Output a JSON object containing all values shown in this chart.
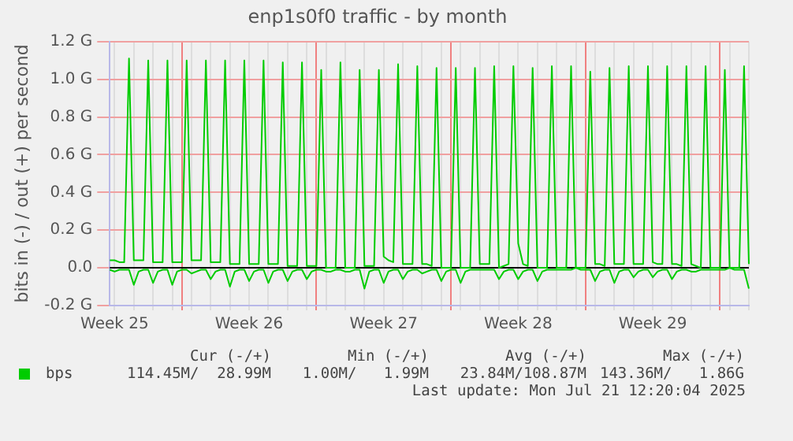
{
  "chart_data": {
    "type": "line",
    "title": "enp1s0f0 traffic - by month",
    "ylabel": "bits in (-) / out (+) per second",
    "categories": [
      null,
      "Week 25",
      null,
      null,
      null,
      null,
      null,
      null,
      null,
      null,
      null,
      null,
      null,
      null,
      null,
      null,
      null,
      null,
      null,
      null,
      null,
      null,
      null,
      null,
      null,
      null,
      null,
      null,
      null,
      "Week 26",
      null,
      null,
      null,
      null,
      null,
      null,
      null,
      null,
      null,
      null,
      null,
      null,
      null,
      null,
      null,
      null,
      null,
      null,
      null,
      null,
      null,
      null,
      null,
      null,
      null,
      null,
      null,
      "Week 27",
      null,
      null,
      null,
      null,
      null,
      null,
      null,
      null,
      null,
      null,
      null,
      null,
      null,
      null,
      null,
      null,
      null,
      null,
      null,
      null,
      null,
      null,
      null,
      null,
      null,
      null,
      null,
      "Week 28",
      null,
      null,
      null,
      null,
      null,
      null,
      null,
      null,
      null,
      null,
      null,
      null,
      null,
      null,
      null,
      null,
      null,
      null,
      null,
      null,
      null,
      null,
      null,
      null,
      null,
      null,
      null,
      "Week 29",
      null,
      null,
      null,
      null,
      null,
      null,
      null,
      null,
      null,
      null,
      null,
      null,
      null,
      null,
      null,
      null,
      null,
      null,
      null,
      null
    ],
    "ylim": [
      -0.2,
      1.2
    ],
    "yticks": [
      {
        "value": -0.2,
        "label": "-0.2 G"
      },
      {
        "value": 0,
        "label": "0.0"
      },
      {
        "value": 0.2,
        "label": "0.2 G"
      },
      {
        "value": 0.4,
        "label": "0.4 G"
      },
      {
        "value": 0.6,
        "label": "0.6 G"
      },
      {
        "value": 0.8,
        "label": "0.8 G"
      },
      {
        "value": 1.0,
        "label": "1.0 G"
      },
      {
        "value": 1.2,
        "label": "1.2 G"
      }
    ],
    "grid": true,
    "legend": "bottom",
    "marker": "none",
    "line_style": "solid",
    "ref_lines": [
      {
        "axis": "y",
        "value": 0,
        "color": "#000000"
      }
    ],
    "series": [
      {
        "name": "bps",
        "color": "#00cc00",
        "values": [
          0.04,
          0.04,
          0.03,
          0.03,
          1.11,
          0.04,
          0.04,
          0.04,
          1.1,
          0.03,
          0.03,
          0.03,
          1.1,
          0.03,
          0.03,
          0.03,
          1.1,
          0.04,
          0.04,
          0.04,
          1.1,
          0.03,
          0.03,
          0.03,
          1.1,
          0.02,
          0.02,
          0.02,
          1.1,
          0.02,
          0.02,
          0.02,
          1.1,
          0.02,
          0.02,
          0.02,
          1.09,
          0.01,
          0.01,
          0.01,
          1.09,
          0.01,
          0.01,
          0.01,
          1.05,
          0.0,
          0.0,
          0.0,
          1.09,
          0.0,
          0.0,
          0.0,
          1.05,
          0.01,
          0.01,
          0.01,
          1.05,
          0.06,
          0.04,
          0.03,
          1.08,
          0.02,
          0.02,
          0.02,
          1.07,
          0.02,
          0.02,
          0.01,
          1.06,
          0.0,
          0.0,
          0.0,
          1.06,
          0.0,
          0.0,
          0.0,
          1.06,
          0.02,
          0.02,
          0.02,
          1.07,
          0.0,
          0.01,
          0.02,
          1.07,
          0.13,
          0.02,
          0.01,
          1.06,
          0.0,
          0.0,
          0.0,
          1.07,
          0.0,
          0.0,
          0.0,
          1.07,
          0.0,
          0.0,
          0.0,
          1.04,
          0.02,
          0.02,
          0.01,
          1.06,
          0.02,
          0.02,
          0.02,
          1.07,
          0.02,
          0.02,
          0.02,
          1.07,
          0.03,
          0.02,
          0.02,
          1.07,
          0.02,
          0.02,
          0.01,
          1.07,
          0.02,
          0.01,
          0.0,
          1.07,
          0.0,
          0.0,
          0.0,
          1.05,
          0.0,
          0.0,
          0.0,
          1.07,
          0.02
        ]
      },
      {
        "color": "#00cc00",
        "values": [
          -0.01,
          -0.02,
          -0.01,
          -0.01,
          -0.01,
          -0.09,
          -0.02,
          -0.01,
          -0.01,
          -0.08,
          -0.02,
          -0.01,
          -0.01,
          -0.09,
          -0.02,
          -0.01,
          -0.01,
          -0.03,
          -0.02,
          -0.01,
          -0.01,
          -0.06,
          -0.02,
          -0.01,
          -0.01,
          -0.1,
          -0.02,
          -0.01,
          -0.01,
          -0.07,
          -0.02,
          -0.01,
          -0.01,
          -0.08,
          -0.02,
          -0.01,
          -0.01,
          -0.07,
          -0.02,
          -0.01,
          -0.01,
          -0.06,
          -0.02,
          -0.01,
          -0.01,
          -0.02,
          -0.02,
          -0.01,
          -0.01,
          -0.02,
          -0.02,
          -0.01,
          -0.01,
          -0.11,
          -0.02,
          -0.01,
          -0.01,
          -0.08,
          -0.02,
          -0.01,
          -0.01,
          -0.06,
          -0.02,
          -0.01,
          -0.01,
          -0.03,
          -0.02,
          -0.01,
          -0.01,
          -0.07,
          -0.02,
          -0.01,
          -0.01,
          -0.08,
          -0.02,
          -0.01,
          -0.01,
          -0.01,
          -0.01,
          -0.01,
          -0.01,
          -0.06,
          -0.02,
          -0.01,
          -0.01,
          -0.06,
          -0.02,
          -0.01,
          -0.01,
          -0.07,
          -0.02,
          -0.01,
          -0.01,
          -0.01,
          -0.01,
          -0.01,
          -0.01,
          0.0,
          -0.01,
          -0.01,
          -0.01,
          -0.07,
          -0.02,
          -0.01,
          -0.01,
          -0.08,
          -0.02,
          -0.01,
          -0.01,
          -0.05,
          -0.02,
          -0.01,
          -0.01,
          -0.05,
          -0.02,
          -0.01,
          -0.01,
          -0.06,
          -0.02,
          -0.01,
          -0.01,
          -0.02,
          -0.02,
          -0.01,
          -0.01,
          -0.01,
          -0.01,
          -0.01,
          -0.01,
          0.0,
          -0.01,
          -0.01,
          -0.01,
          -0.11
        ]
      }
    ],
    "annotations": [
      "Cur (-/+)",
      "Min (-/+)",
      "Avg (-/+)",
      "Max (-/+)",
      "114.45M/  28.99M",
      "1.00M/   1.99M",
      "23.84M/108.87M",
      "143.36M/   1.86G",
      "Last update: Mon Jul 21 12:20:04 2025"
    ]
  }
}
